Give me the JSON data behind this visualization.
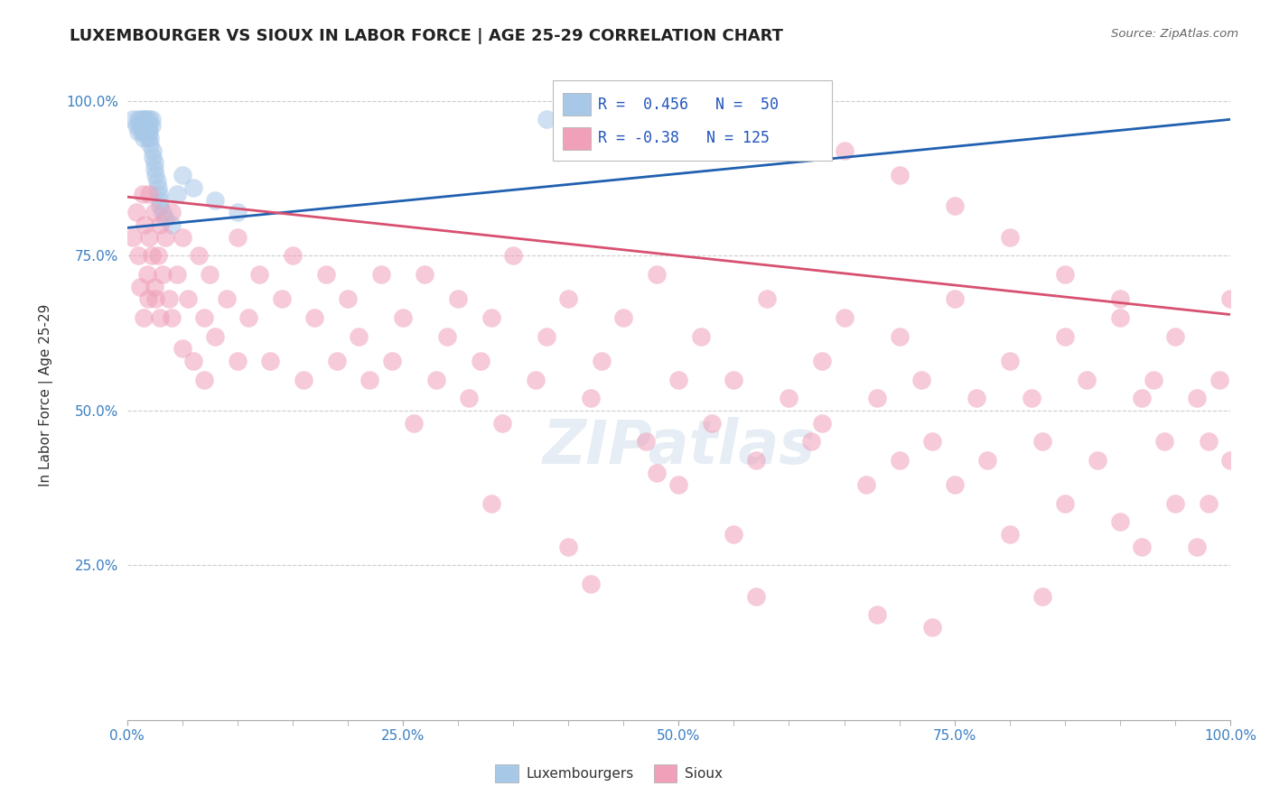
{
  "title": "LUXEMBOURGER VS SIOUX IN LABOR FORCE | AGE 25-29 CORRELATION CHART",
  "source": "Source: ZipAtlas.com",
  "ylabel": "In Labor Force | Age 25-29",
  "x_tick_labels": [
    "0.0%",
    "",
    "",
    "",
    "",
    "25.0%",
    "",
    "",
    "",
    "",
    "50.0%",
    "",
    "",
    "",
    "",
    "75.0%",
    "",
    "",
    "",
    "",
    "100.0%"
  ],
  "x_tick_vals": [
    0.0,
    0.05,
    0.1,
    0.15,
    0.2,
    0.25,
    0.3,
    0.35,
    0.4,
    0.45,
    0.5,
    0.55,
    0.6,
    0.65,
    0.7,
    0.75,
    0.8,
    0.85,
    0.9,
    0.95,
    1.0
  ],
  "y_tick_labels": [
    "25.0%",
    "50.0%",
    "75.0%",
    "100.0%"
  ],
  "y_tick_vals": [
    0.25,
    0.5,
    0.75,
    1.0
  ],
  "xlim": [
    0.0,
    1.0
  ],
  "ylim": [
    0.0,
    1.05
  ],
  "blue_R": 0.456,
  "blue_N": 50,
  "pink_R": -0.38,
  "pink_N": 125,
  "blue_color": "#A8C8E8",
  "pink_color": "#F0A0B8",
  "blue_line_color": "#2060B0",
  "pink_line_color": "#D85070",
  "background_color": "#FFFFFF",
  "grid_color": "#CCCCCC",
  "title_fontsize": 13,
  "legend_label_blue": "Luxembourgers",
  "legend_label_pink": "Sioux",
  "blue_points_x": [
    0.005,
    0.008,
    0.01,
    0.01,
    0.012,
    0.012,
    0.013,
    0.015,
    0.015,
    0.015,
    0.015,
    0.016,
    0.016,
    0.017,
    0.018,
    0.018,
    0.019,
    0.019,
    0.02,
    0.02,
    0.02,
    0.021,
    0.021,
    0.022,
    0.022,
    0.023,
    0.023,
    0.025,
    0.025,
    0.026,
    0.027,
    0.028,
    0.029,
    0.03,
    0.03,
    0.032,
    0.035,
    0.04,
    0.045,
    0.05,
    0.06,
    0.08,
    0.1,
    0.38,
    0.4,
    0.43,
    0.45,
    0.48,
    0.5,
    0.52
  ],
  "blue_points_y": [
    0.97,
    0.96,
    0.97,
    0.95,
    0.97,
    0.96,
    0.95,
    0.97,
    0.96,
    0.95,
    0.94,
    0.97,
    0.96,
    0.95,
    0.97,
    0.96,
    0.95,
    0.94,
    0.97,
    0.96,
    0.95,
    0.94,
    0.93,
    0.97,
    0.96,
    0.92,
    0.91,
    0.9,
    0.89,
    0.88,
    0.87,
    0.86,
    0.85,
    0.84,
    0.83,
    0.82,
    0.81,
    0.8,
    0.85,
    0.88,
    0.86,
    0.84,
    0.82,
    0.97,
    0.96,
    0.97,
    0.96,
    0.97,
    0.96,
    0.97
  ],
  "pink_points_x": [
    0.005,
    0.008,
    0.01,
    0.012,
    0.014,
    0.015,
    0.016,
    0.018,
    0.019,
    0.02,
    0.02,
    0.022,
    0.025,
    0.025,
    0.026,
    0.028,
    0.03,
    0.03,
    0.032,
    0.035,
    0.038,
    0.04,
    0.04,
    0.045,
    0.05,
    0.05,
    0.055,
    0.06,
    0.065,
    0.07,
    0.07,
    0.075,
    0.08,
    0.09,
    0.1,
    0.1,
    0.11,
    0.12,
    0.13,
    0.14,
    0.15,
    0.16,
    0.17,
    0.18,
    0.19,
    0.2,
    0.21,
    0.22,
    0.23,
    0.24,
    0.25,
    0.26,
    0.27,
    0.28,
    0.29,
    0.3,
    0.31,
    0.32,
    0.33,
    0.34,
    0.35,
    0.37,
    0.38,
    0.4,
    0.42,
    0.43,
    0.45,
    0.47,
    0.48,
    0.5,
    0.5,
    0.52,
    0.53,
    0.55,
    0.57,
    0.58,
    0.6,
    0.62,
    0.63,
    0.65,
    0.67,
    0.68,
    0.7,
    0.7,
    0.72,
    0.73,
    0.75,
    0.75,
    0.77,
    0.78,
    0.8,
    0.8,
    0.82,
    0.83,
    0.85,
    0.85,
    0.87,
    0.88,
    0.9,
    0.9,
    0.92,
    0.92,
    0.93,
    0.94,
    0.95,
    0.95,
    0.97,
    0.97,
    0.98,
    0.98,
    0.99,
    1.0,
    1.0,
    0.62,
    0.65,
    0.7,
    0.75,
    0.8,
    0.85,
    0.9,
    0.33,
    0.48,
    0.55,
    0.42,
    0.57,
    0.68,
    0.73,
    0.83,
    0.63,
    0.4
  ],
  "pink_points_y": [
    0.78,
    0.82,
    0.75,
    0.7,
    0.85,
    0.65,
    0.8,
    0.72,
    0.68,
    0.78,
    0.85,
    0.75,
    0.7,
    0.82,
    0.68,
    0.75,
    0.65,
    0.8,
    0.72,
    0.78,
    0.68,
    0.65,
    0.82,
    0.72,
    0.6,
    0.78,
    0.68,
    0.58,
    0.75,
    0.65,
    0.55,
    0.72,
    0.62,
    0.68,
    0.78,
    0.58,
    0.65,
    0.72,
    0.58,
    0.68,
    0.75,
    0.55,
    0.65,
    0.72,
    0.58,
    0.68,
    0.62,
    0.55,
    0.72,
    0.58,
    0.65,
    0.48,
    0.72,
    0.55,
    0.62,
    0.68,
    0.52,
    0.58,
    0.65,
    0.48,
    0.75,
    0.55,
    0.62,
    0.68,
    0.52,
    0.58,
    0.65,
    0.45,
    0.72,
    0.55,
    0.38,
    0.62,
    0.48,
    0.55,
    0.42,
    0.68,
    0.52,
    0.45,
    0.58,
    0.65,
    0.38,
    0.52,
    0.62,
    0.42,
    0.55,
    0.45,
    0.68,
    0.38,
    0.52,
    0.42,
    0.58,
    0.3,
    0.52,
    0.45,
    0.62,
    0.35,
    0.55,
    0.42,
    0.65,
    0.32,
    0.52,
    0.28,
    0.55,
    0.45,
    0.62,
    0.35,
    0.52,
    0.28,
    0.45,
    0.35,
    0.55,
    0.42,
    0.68,
    0.97,
    0.92,
    0.88,
    0.83,
    0.78,
    0.72,
    0.68,
    0.35,
    0.4,
    0.3,
    0.22,
    0.2,
    0.17,
    0.15,
    0.2,
    0.48,
    0.28
  ]
}
